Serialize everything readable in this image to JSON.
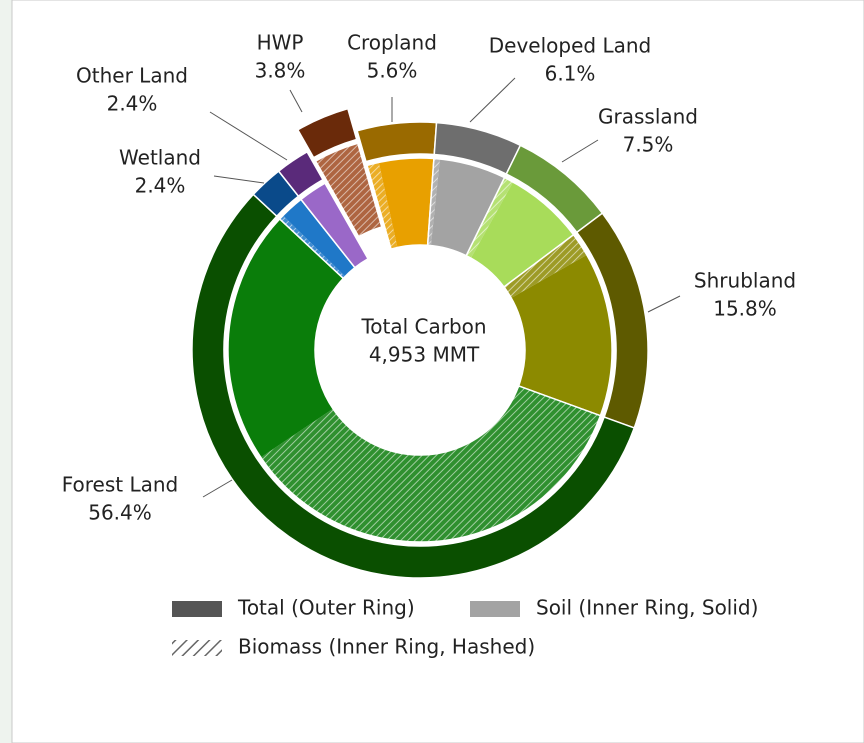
{
  "chart_data": {
    "type": "donut",
    "center_label": [
      "Total Carbon",
      "4,953 MMT"
    ],
    "categories": [
      "Cropland",
      "Developed Land",
      "Grassland",
      "Shrubland",
      "Forest Land",
      "Wetland",
      "Other Land",
      "HWP"
    ],
    "outer_colors": [
      "#9a6a00",
      "#6e6e6e",
      "#6a9a3a",
      "#5e5a00",
      "#0a4f00",
      "#0a4a8a",
      "#5a2a7a",
      "#6a2a0a"
    ],
    "inner_colors": [
      "#e8a000",
      "#a3a3a3",
      "#a8dc5a",
      "#8c8a00",
      "#0a7d0a",
      "#1f78c8",
      "#9a68c8",
      "#a04a20"
    ],
    "exploded_category": "HWP",
    "series": [
      {
        "name": "Total (Outer Ring)",
        "color": "#555555",
        "values": [
          5.6,
          6.1,
          7.5,
          15.8,
          56.4,
          2.4,
          2.4,
          3.8
        ],
        "value_labels": [
          "5.6%",
          "6.1%",
          "7.5%",
          "15.8%",
          "56.4%",
          "2.4%",
          "2.4%",
          "3.8%"
        ]
      },
      {
        "name": "Soil (Inner Ring, Solid)",
        "color": "#a3a3a3",
        "values": [
          4.6,
          5.6,
          6.7,
          13.8,
          21.4,
          2.0,
          2.4,
          0
        ]
      },
      {
        "name": "Biomass (Inner Ring, Hashed)",
        "color": "#a3a3a3",
        "values": [
          1.0,
          0.5,
          0.8,
          2.0,
          35.0,
          0.4,
          0,
          3.8
        ]
      }
    ]
  }
}
